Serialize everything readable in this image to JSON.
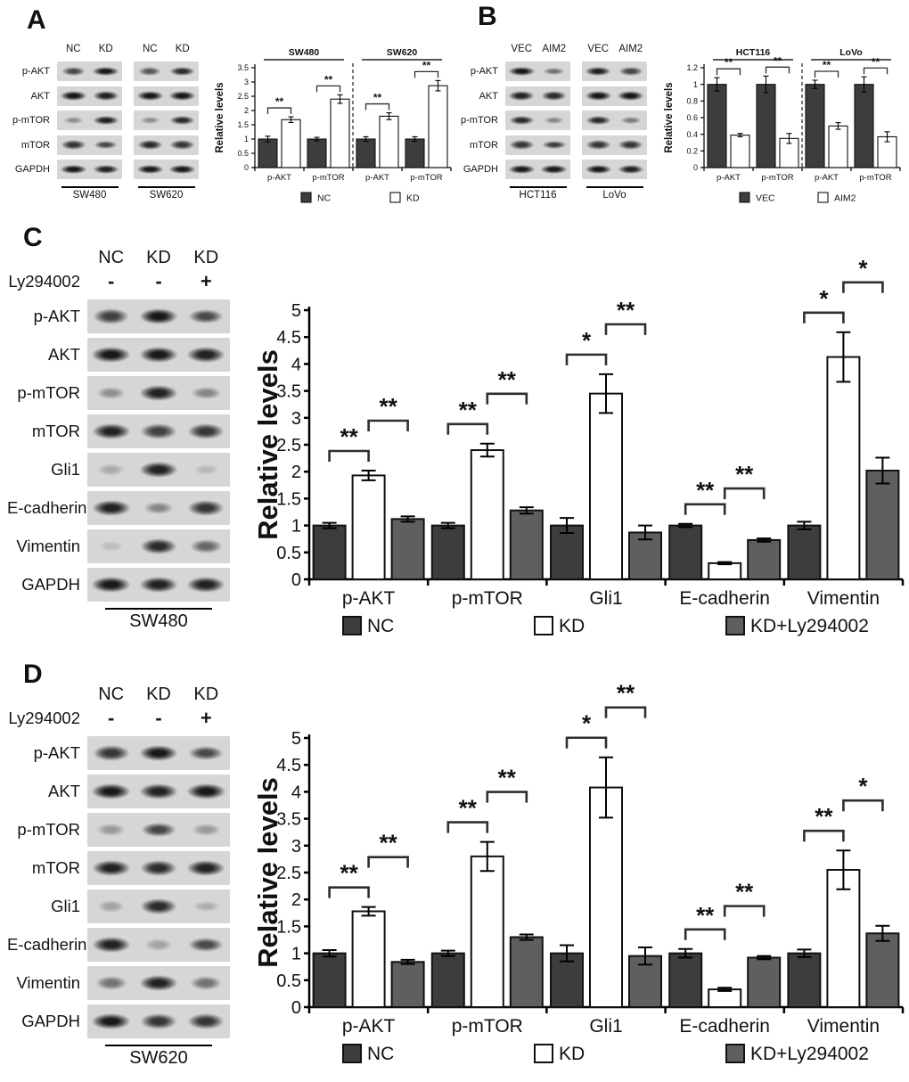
{
  "figure": {
    "panels": [
      {
        "id": "A",
        "label": "A",
        "blot": {
          "lane_headers": [
            "NC",
            "KD",
            "NC",
            "KD"
          ],
          "proteins": [
            "p-AKT",
            "AKT",
            "p-mTOR",
            "mTOR",
            "GAPDH"
          ],
          "groups": [
            "SW480",
            "SW620"
          ],
          "band_intensities": [
            [
              0.7,
              0.95,
              0.62,
              0.85
            ],
            [
              0.95,
              0.9,
              0.95,
              0.95
            ],
            [
              0.35,
              0.9,
              0.35,
              0.85
            ],
            [
              0.8,
              0.7,
              0.85,
              0.8
            ],
            [
              0.95,
              0.9,
              0.95,
              0.95
            ]
          ]
        }
      },
      {
        "id": "B",
        "label": "B",
        "blot": {
          "lane_headers": [
            "VEC",
            "AIM2",
            "VEC",
            "AIM2"
          ],
          "proteins": [
            "p-AKT",
            "AKT",
            "p-mTOR",
            "mTOR",
            "GAPDH"
          ],
          "groups": [
            "HCT116",
            "LoVo"
          ],
          "band_intensities": [
            [
              0.95,
              0.5,
              0.9,
              0.72
            ],
            [
              0.9,
              0.85,
              0.95,
              0.95
            ],
            [
              0.85,
              0.4,
              0.85,
              0.45
            ],
            [
              0.8,
              0.75,
              0.8,
              0.8
            ],
            [
              0.95,
              0.95,
              0.95,
              0.9
            ]
          ]
        }
      },
      {
        "id": "C",
        "label": "C",
        "blot": {
          "lane_headers": [
            "NC",
            "KD",
            "KD"
          ],
          "treatment_label": "Ly294002",
          "treatments": [
            "-",
            "-",
            "+"
          ],
          "proteins": [
            "p-AKT",
            "AKT",
            "p-mTOR",
            "mTOR",
            "Gli1",
            "E-cadherin",
            "Vimentin",
            "GAPDH"
          ],
          "groups": [
            "SW480"
          ],
          "band_intensities": [
            [
              0.75,
              0.95,
              0.7
            ],
            [
              0.95,
              0.95,
              0.9
            ],
            [
              0.35,
              0.9,
              0.4
            ],
            [
              0.9,
              0.75,
              0.8
            ],
            [
              0.22,
              0.9,
              0.15
            ],
            [
              0.9,
              0.4,
              0.8
            ],
            [
              0.12,
              0.85,
              0.55
            ],
            [
              0.95,
              0.9,
              0.9
            ]
          ]
        }
      },
      {
        "id": "D",
        "label": "D",
        "blot": {
          "lane_headers": [
            "NC",
            "KD",
            "KD"
          ],
          "treatment_label": "Ly294002",
          "treatments": [
            "-",
            "-",
            "+"
          ],
          "proteins": [
            "p-AKT",
            "AKT",
            "p-mTOR",
            "mTOR",
            "Gli1",
            "E-cadherin",
            "Vimentin",
            "GAPDH"
          ],
          "groups": [
            "SW620"
          ],
          "band_intensities": [
            [
              0.8,
              0.95,
              0.7
            ],
            [
              0.95,
              0.9,
              0.95
            ],
            [
              0.3,
              0.72,
              0.3
            ],
            [
              0.9,
              0.85,
              0.9
            ],
            [
              0.25,
              0.85,
              0.2
            ],
            [
              0.9,
              0.25,
              0.7
            ],
            [
              0.5,
              0.9,
              0.5
            ],
            [
              0.95,
              0.8,
              0.8
            ]
          ]
        }
      }
    ]
  },
  "chart_data": [
    {
      "panel": "A",
      "type": "bar",
      "ylabel": "Relative levels",
      "ylim": [
        0,
        3.5
      ],
      "yticks": [
        0,
        0.5,
        1,
        1.5,
        2,
        2.5,
        3,
        3.5
      ],
      "grid": false,
      "legend_position": "bottom",
      "categories": [
        "p-AKT",
        "p-mTOR",
        "p-AKT",
        "p-mTOR"
      ],
      "group_headers": [
        {
          "label": "SW480",
          "from": 0,
          "to": 1
        },
        {
          "label": "SW620",
          "from": 2,
          "to": 3
        }
      ],
      "separator_after": 1,
      "series": [
        {
          "name": "NC",
          "color": "#3d3d3d",
          "values": [
            1.0,
            1.0,
            1.0,
            1.0
          ],
          "errors": [
            0.1,
            0.06,
            0.08,
            0.08
          ]
        },
        {
          "name": "KD",
          "color": "#ffffff",
          "values": [
            1.68,
            2.4,
            1.8,
            2.87
          ],
          "errors": [
            0.1,
            0.15,
            0.12,
            0.18
          ]
        }
      ],
      "significance": [
        {
          "category": 0,
          "between": [
            0,
            1
          ],
          "label": "**"
        },
        {
          "category": 1,
          "between": [
            0,
            1
          ],
          "label": "**"
        },
        {
          "category": 2,
          "between": [
            0,
            1
          ],
          "label": "**"
        },
        {
          "category": 3,
          "between": [
            0,
            1
          ],
          "label": "**"
        }
      ]
    },
    {
      "panel": "B",
      "type": "bar",
      "ylabel": "Relative levels",
      "ylim": [
        0,
        1.2
      ],
      "yticks": [
        0,
        0.2,
        0.4,
        0.6,
        0.8,
        1,
        1.2
      ],
      "grid": false,
      "legend_position": "bottom",
      "categories": [
        "p-AKT",
        "p-mTOR",
        "p-AKT",
        "p-mTOR"
      ],
      "group_headers": [
        {
          "label": "HCT116",
          "from": 0,
          "to": 1
        },
        {
          "label": "LoVo",
          "from": 2,
          "to": 3
        }
      ],
      "separator_after": 1,
      "series": [
        {
          "name": "VEC",
          "color": "#3d3d3d",
          "values": [
            1.0,
            1.0,
            1.0,
            1.0
          ],
          "errors": [
            0.08,
            0.1,
            0.05,
            0.09
          ]
        },
        {
          "name": "AIM2",
          "color": "#ffffff",
          "values": [
            0.39,
            0.35,
            0.5,
            0.37
          ],
          "errors": [
            0.02,
            0.06,
            0.04,
            0.06
          ]
        }
      ],
      "significance": [
        {
          "category": 0,
          "between": [
            0,
            1
          ],
          "label": "**"
        },
        {
          "category": 1,
          "between": [
            0,
            1
          ],
          "label": "**"
        },
        {
          "category": 2,
          "between": [
            0,
            1
          ],
          "label": "**"
        },
        {
          "category": 3,
          "between": [
            0,
            1
          ],
          "label": "**"
        }
      ]
    },
    {
      "panel": "C",
      "type": "bar",
      "ylabel": "Relative levels",
      "ylim": [
        0,
        5
      ],
      "yticks": [
        0,
        0.5,
        1,
        1.5,
        2,
        2.5,
        3,
        3.5,
        4,
        4.5,
        5
      ],
      "grid": false,
      "legend_position": "bottom",
      "categories": [
        "p-AKT",
        "p-mTOR",
        "Gli1",
        "E-cadherin",
        "Vimentin"
      ],
      "series": [
        {
          "name": "NC",
          "color": "#3d3d3d",
          "values": [
            1.0,
            1.0,
            1.0,
            1.0,
            1.0
          ],
          "errors": [
            0.05,
            0.05,
            0.14,
            0.03,
            0.07
          ]
        },
        {
          "name": "KD",
          "color": "#ffffff",
          "values": [
            1.93,
            2.4,
            3.45,
            0.3,
            4.13
          ],
          "errors": [
            0.09,
            0.12,
            0.36,
            0.02,
            0.46
          ]
        },
        {
          "name": "KD+Ly294002",
          "color": "#5f5f5f",
          "values": [
            1.12,
            1.28,
            0.87,
            0.73,
            2.02
          ],
          "errors": [
            0.05,
            0.06,
            0.13,
            0.03,
            0.24
          ]
        }
      ],
      "significance": [
        {
          "category": 0,
          "between": [
            0,
            1
          ],
          "label": "**"
        },
        {
          "category": 0,
          "between": [
            1,
            2
          ],
          "label": "**"
        },
        {
          "category": 1,
          "between": [
            0,
            1
          ],
          "label": "**"
        },
        {
          "category": 1,
          "between": [
            1,
            2
          ],
          "label": "**"
        },
        {
          "category": 2,
          "between": [
            0,
            1
          ],
          "label": "*"
        },
        {
          "category": 2,
          "between": [
            1,
            2
          ],
          "label": "**"
        },
        {
          "category": 3,
          "between": [
            0,
            1
          ],
          "label": "**"
        },
        {
          "category": 3,
          "between": [
            1,
            2
          ],
          "label": "**"
        },
        {
          "category": 4,
          "between": [
            0,
            1
          ],
          "label": "*"
        },
        {
          "category": 4,
          "between": [
            1,
            2
          ],
          "label": "*"
        }
      ]
    },
    {
      "panel": "D",
      "type": "bar",
      "ylabel": "Relative levels",
      "ylim": [
        0,
        5
      ],
      "yticks": [
        0,
        0.5,
        1,
        1.5,
        2,
        2.5,
        3,
        3.5,
        4,
        4.5,
        5
      ],
      "grid": false,
      "legend_position": "bottom",
      "categories": [
        "p-AKT",
        "p-mTOR",
        "Gli1",
        "E-cadherin",
        "Vimentin"
      ],
      "series": [
        {
          "name": "NC",
          "color": "#3d3d3d",
          "values": [
            1.0,
            1.0,
            1.0,
            1.0,
            1.0
          ],
          "errors": [
            0.06,
            0.05,
            0.15,
            0.08,
            0.07
          ]
        },
        {
          "name": "KD",
          "color": "#ffffff",
          "values": [
            1.78,
            2.8,
            4.08,
            0.33,
            2.55
          ],
          "errors": [
            0.08,
            0.27,
            0.56,
            0.03,
            0.36
          ]
        },
        {
          "name": "KD+Ly294002",
          "color": "#5f5f5f",
          "values": [
            0.84,
            1.3,
            0.95,
            0.92,
            1.37
          ],
          "errors": [
            0.04,
            0.05,
            0.16,
            0.03,
            0.14
          ]
        }
      ],
      "significance": [
        {
          "category": 0,
          "between": [
            0,
            1
          ],
          "label": "**"
        },
        {
          "category": 0,
          "between": [
            1,
            2
          ],
          "label": "**"
        },
        {
          "category": 1,
          "between": [
            0,
            1
          ],
          "label": "**"
        },
        {
          "category": 1,
          "between": [
            1,
            2
          ],
          "label": "**"
        },
        {
          "category": 2,
          "between": [
            0,
            1
          ],
          "label": "*"
        },
        {
          "category": 2,
          "between": [
            1,
            2
          ],
          "label": "**"
        },
        {
          "category": 3,
          "between": [
            0,
            1
          ],
          "label": "**"
        },
        {
          "category": 3,
          "between": [
            1,
            2
          ],
          "label": "**"
        },
        {
          "category": 4,
          "between": [
            0,
            1
          ],
          "label": "**"
        },
        {
          "category": 4,
          "between": [
            1,
            2
          ],
          "label": "*"
        }
      ]
    }
  ]
}
